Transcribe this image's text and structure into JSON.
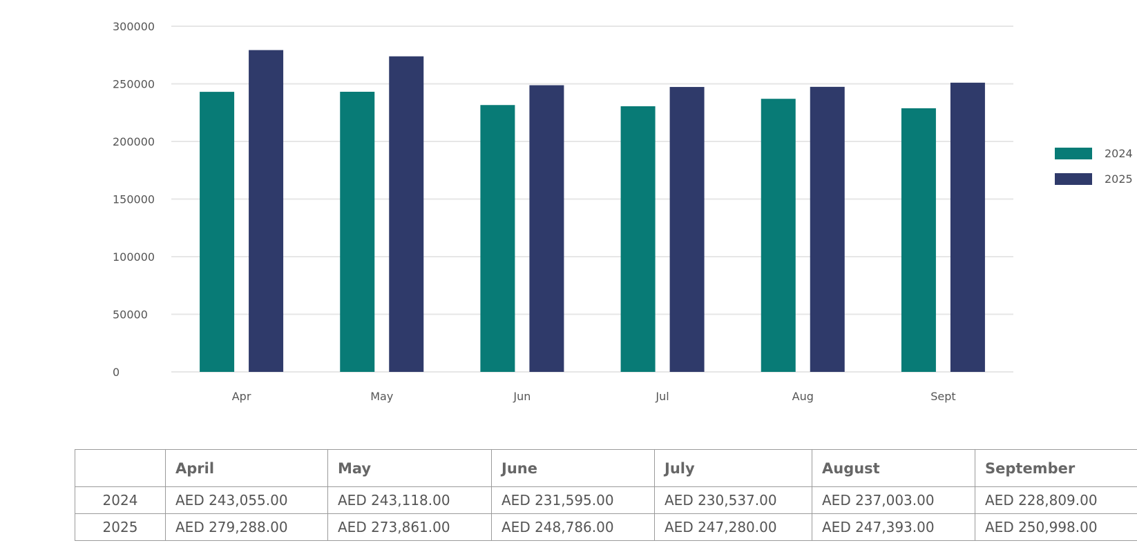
{
  "chart_data": {
    "type": "bar",
    "categories": [
      "Apr",
      "May",
      "Jun",
      "Jul",
      "Aug",
      "Sept"
    ],
    "series": [
      {
        "name": "2024",
        "color": "#087B76",
        "values": [
          243055,
          243118,
          231595,
          230537,
          237003,
          228809
        ]
      },
      {
        "name": "2025",
        "color": "#2F3A6A",
        "values": [
          279288,
          273861,
          248786,
          247280,
          247393,
          250998
        ]
      }
    ],
    "y_ticks": [
      "0",
      "50000",
      "100000",
      "150000",
      "200000",
      "250000",
      "300000"
    ],
    "ylim": [
      0,
      300000
    ],
    "grid": true,
    "legend": "right"
  },
  "table": {
    "headers": [
      "",
      "April",
      "May",
      "June",
      "July",
      "August",
      "September"
    ],
    "rows": [
      {
        "label": "2024",
        "cells": [
          "AED 243,055.00",
          "AED 243,118.00",
          "AED 231,595.00",
          "AED 230,537.00",
          "AED 237,003.00",
          "AED 228,809.00"
        ]
      },
      {
        "label": "2025",
        "cells": [
          "AED 279,288.00",
          "AED 273,861.00",
          "AED 248,786.00",
          "AED 247,280.00",
          "AED 247,393.00",
          "AED 250,998.00"
        ]
      }
    ]
  }
}
